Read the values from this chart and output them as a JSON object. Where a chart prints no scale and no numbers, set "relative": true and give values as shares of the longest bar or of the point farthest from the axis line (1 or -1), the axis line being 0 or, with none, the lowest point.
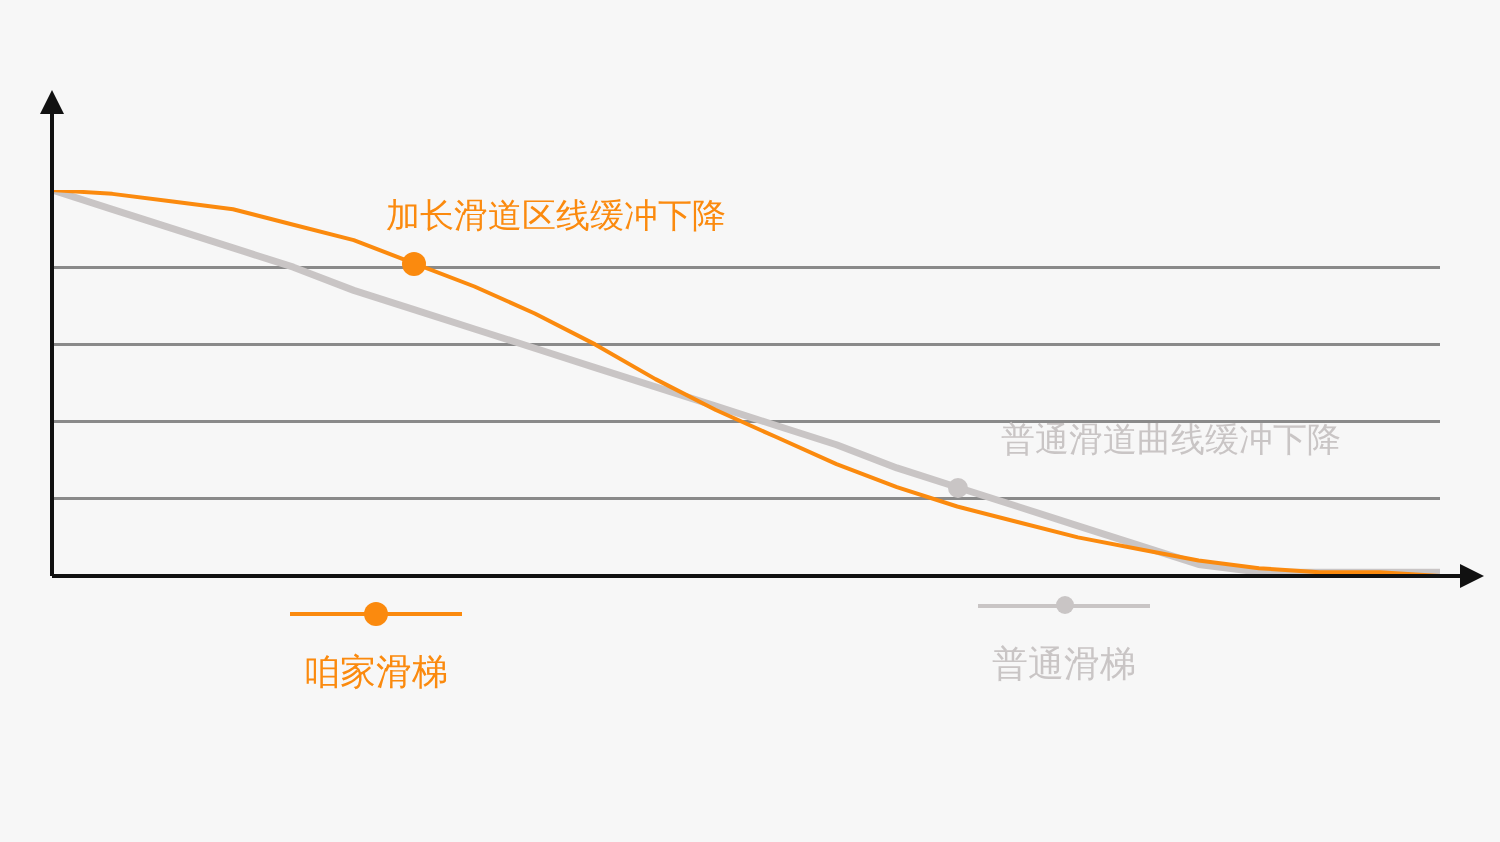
{
  "chart_data": {
    "type": "line",
    "relative": true,
    "grid": "y",
    "legend": "bottom",
    "tick_labels": false,
    "line_style": "solid",
    "categories": [
      null,
      null,
      null,
      null,
      null,
      null,
      null,
      null,
      null,
      null,
      null,
      null,
      null,
      null,
      null,
      null,
      null,
      null,
      null,
      null,
      null,
      null,
      null,
      null
    ],
    "series": [
      {
        "name": "咱家滑梯",
        "color": "#fb8a0e",
        "values": [
          1.0,
          0.99,
          0.97,
          0.95,
          0.91,
          0.87,
          0.81,
          0.75,
          0.68,
          0.6,
          0.51,
          0.43,
          0.36,
          0.29,
          0.23,
          0.18,
          0.14,
          0.1,
          0.07,
          0.04,
          0.02,
          0.01,
          0.01,
          0
        ]
      },
      {
        "name": "普通滑梯",
        "color": "#c9c5c5",
        "values": [
          1.0,
          0.95,
          0.9,
          0.85,
          0.8,
          0.74,
          0.69,
          0.64,
          0.59,
          0.54,
          0.49,
          0.44,
          0.39,
          0.34,
          0.28,
          0.23,
          0.18,
          0.13,
          0.08,
          0.03,
          0.01,
          0.01,
          0.01,
          0.01
        ]
      }
    ],
    "annotations": [
      "加长滑道区线缓冲下降",
      "普通滑道曲线缓冲下降"
    ]
  }
}
